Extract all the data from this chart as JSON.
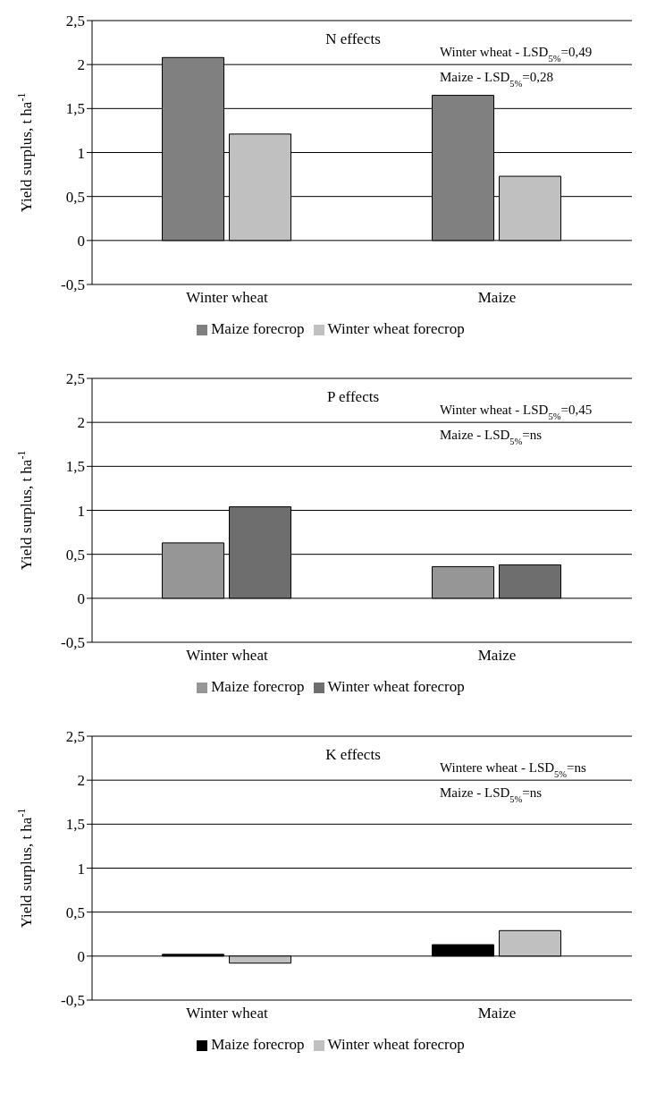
{
  "chart_data": [
    {
      "type": "bar",
      "title": "N effects",
      "ylabel": "Yield surplus, t ha$^{-1}$",
      "categories": [
        "Winter wheat",
        "Maize"
      ],
      "series": [
        {
          "name": "Maize forecrop",
          "color": "#808080",
          "values": [
            2.08,
            1.65
          ]
        },
        {
          "name": "Winter wheat forecrop",
          "color": "#c0c0c0",
          "values": [
            1.21,
            0.73
          ]
        }
      ],
      "ylim": [
        -0.5,
        2.5
      ],
      "yticks": [
        {
          "value": -0.5,
          "label": "-0,5"
        },
        0,
        {
          "value": 0.5,
          "label": "0,5"
        },
        1,
        {
          "value": 1.5,
          "label": "1,5"
        },
        2,
        {
          "value": 2.5,
          "label": "2,5"
        }
      ],
      "grid": "y",
      "legend": "bottom",
      "annotations": [
        "Winter wheat - LSD$_{5%}$=0,49",
        "Maize - LSD$_{5%}$=0,28"
      ]
    },
    {
      "type": "bar",
      "title": "P effects",
      "ylabel": "Yield surplus, t ha$^{-1}$",
      "categories": [
        "Winter wheat",
        "Maize"
      ],
      "series": [
        {
          "name": "Maize forecrop",
          "color": "#969696",
          "values": [
            0.63,
            0.36
          ]
        },
        {
          "name": "Winter wheat forecrop",
          "color": "#6e6e6e",
          "values": [
            1.04,
            0.38
          ]
        }
      ],
      "ylim": [
        -0.5,
        2.5
      ],
      "yticks": [
        {
          "value": -0.5,
          "label": "-0,5"
        },
        0,
        {
          "value": 0.5,
          "label": "0,5"
        },
        1,
        {
          "value": 1.5,
          "label": "1,5"
        },
        2,
        {
          "value": 2.5,
          "label": "2,5"
        }
      ],
      "grid": "y",
      "legend": "bottom",
      "annotations": [
        "Winter wheat - LSD$_{5%}$=0,45",
        "Maize - LSD$_{5%}$=ns"
      ]
    },
    {
      "type": "bar",
      "title": "K effects",
      "ylabel": "Yield surplus, t ha$^{-1}$",
      "categories": [
        "Winter wheat",
        "Maize"
      ],
      "series": [
        {
          "name": "Maize forecrop",
          "color": "#000000",
          "values": [
            0.02,
            0.13
          ]
        },
        {
          "name": "Winter wheat forecrop",
          "color": "#c0c0c0",
          "values": [
            -0.08,
            0.29
          ]
        }
      ],
      "ylim": [
        -0.5,
        2.5
      ],
      "yticks": [
        {
          "value": -0.5,
          "label": "-0,5"
        },
        0,
        {
          "value": 0.5,
          "label": "0,5"
        },
        1,
        {
          "value": 1.5,
          "label": "1,5"
        },
        2,
        {
          "value": 2.5,
          "label": "2,5"
        }
      ],
      "grid": "y",
      "legend": "bottom",
      "annotations": [
        "Wintere wheat - LSD$_{5%}$=ns",
        "Maize - LSD$_{5%}$=ns"
      ]
    }
  ]
}
